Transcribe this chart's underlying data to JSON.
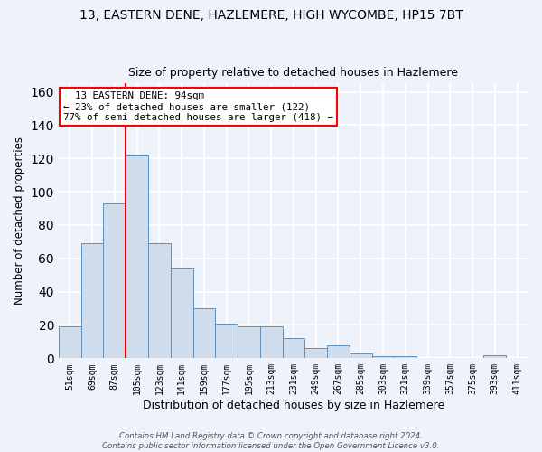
{
  "title": "13, EASTERN DENE, HAZLEMERE, HIGH WYCOMBE, HP15 7BT",
  "subtitle": "Size of property relative to detached houses in Hazlemere",
  "xlabel": "Distribution of detached houses by size in Hazlemere",
  "ylabel": "Number of detached properties",
  "bar_color": "#cfdcec",
  "bar_edge_color": "#6090bb",
  "categories": [
    "51sqm",
    "69sqm",
    "87sqm",
    "105sqm",
    "123sqm",
    "141sqm",
    "159sqm",
    "177sqm",
    "195sqm",
    "213sqm",
    "231sqm",
    "249sqm",
    "267sqm",
    "285sqm",
    "303sqm",
    "321sqm",
    "339sqm",
    "357sqm",
    "375sqm",
    "393sqm",
    "411sqm"
  ],
  "values": [
    19,
    69,
    93,
    122,
    69,
    54,
    30,
    21,
    19,
    19,
    12,
    6,
    8,
    3,
    1,
    1,
    0,
    0,
    0,
    2,
    0
  ],
  "ylim": [
    0,
    165
  ],
  "yticks": [
    0,
    20,
    40,
    60,
    80,
    100,
    120,
    140,
    160
  ],
  "property_line_x": 2.5,
  "annotation_text": "  13 EASTERN DENE: 94sqm  \n← 23% of detached houses are smaller (122)\n77% of semi-detached houses are larger (418) →",
  "annotation_box_color": "white",
  "annotation_edge_color": "red",
  "vline_color": "red",
  "footer_text": "Contains HM Land Registry data © Crown copyright and database right 2024.\nContains public sector information licensed under the Open Government Licence v3.0.",
  "background_color": "#eef2fb",
  "grid_color": "white",
  "title_fontsize": 10,
  "subtitle_fontsize": 9,
  "ylabel_fontsize": 8.5,
  "xlabel_fontsize": 9
}
